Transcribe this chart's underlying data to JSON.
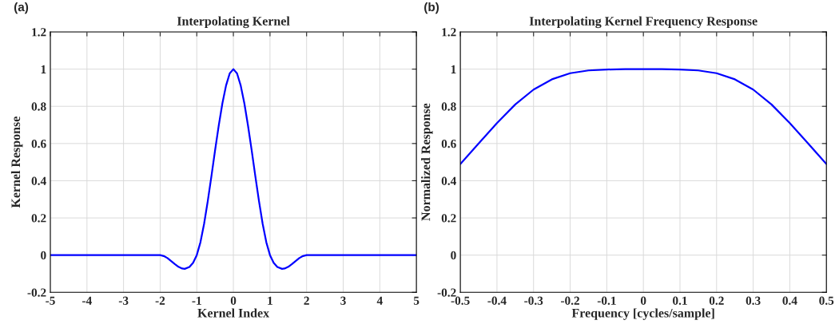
{
  "chart_data": [
    {
      "type": "line",
      "title": "Interpolating Kernel",
      "xlabel": "Kernel Index",
      "ylabel": "Kernel Response",
      "annotations": [
        "(a)"
      ],
      "series": [
        {
          "color": "#0000ff",
          "x": [
            -5,
            -4,
            -3,
            -2,
            -1.9,
            -1.8,
            -1.7,
            -1.6,
            -1.5,
            -1.4,
            -1.33,
            -1.2,
            -1.1,
            -1,
            -0.9,
            -0.8,
            -0.7,
            -0.6,
            -0.5,
            -0.4,
            -0.3,
            -0.2,
            -0.1,
            0,
            0.1,
            0.2,
            0.3,
            0.4,
            0.5,
            0.6,
            0.7,
            0.8,
            0.9,
            1,
            1.1,
            1.2,
            1.33,
            1.4,
            1.5,
            1.6,
            1.7,
            1.8,
            1.9,
            2,
            3,
            4,
            5
          ],
          "values": [
            0,
            0,
            0,
            0,
            -0.005,
            -0.016,
            -0.032,
            -0.048,
            -0.063,
            -0.072,
            -0.074,
            -0.064,
            -0.041,
            0,
            0.069,
            0.168,
            0.29,
            0.424,
            0.563,
            0.696,
            0.816,
            0.912,
            0.977,
            1,
            0.977,
            0.912,
            0.816,
            0.696,
            0.563,
            0.424,
            0.29,
            0.168,
            0.069,
            0,
            -0.041,
            -0.064,
            -0.074,
            -0.072,
            -0.063,
            -0.048,
            -0.032,
            -0.016,
            -0.005,
            0,
            0,
            0,
            0
          ]
        }
      ],
      "xlim": [
        -5,
        5
      ],
      "xticks": [
        -5,
        -4,
        -3,
        -2,
        -1,
        0,
        1,
        2,
        3,
        4,
        5
      ],
      "ylim": [
        -0.2,
        1.2
      ],
      "yticks": [
        -0.2,
        0,
        0.2,
        0.4,
        0.6,
        0.8,
        1,
        1.2
      ],
      "grid": true,
      "line_style": "solid"
    },
    {
      "type": "line",
      "title": "Interpolating Kernel Frequency Response",
      "xlabel": "Frequency [cycles/sample]",
      "ylabel": "Normalized Response",
      "annotations": [
        "(b)"
      ],
      "series": [
        {
          "color": "#0000ff",
          "x": [
            -0.5,
            -0.45,
            -0.4,
            -0.35,
            -0.3,
            -0.25,
            -0.2,
            -0.15,
            -0.1,
            -0.05,
            0,
            0.05,
            0.1,
            0.15,
            0.2,
            0.25,
            0.3,
            0.35,
            0.4,
            0.45,
            0.5
          ],
          "values": [
            0.49,
            0.6,
            0.71,
            0.81,
            0.89,
            0.945,
            0.978,
            0.993,
            0.998,
            1,
            1,
            1,
            0.998,
            0.993,
            0.978,
            0.945,
            0.89,
            0.81,
            0.71,
            0.6,
            0.49
          ]
        }
      ],
      "xlim": [
        -0.5,
        0.5
      ],
      "xticks": [
        -0.5,
        -0.4,
        -0.3,
        -0.2,
        -0.1,
        0,
        0.1,
        0.2,
        0.3,
        0.4,
        0.5
      ],
      "ylim": [
        -0.2,
        1.2
      ],
      "yticks": [
        -0.2,
        0,
        0.2,
        0.4,
        0.6,
        0.8,
        1,
        1.2
      ],
      "grid": true,
      "line_style": "solid"
    }
  ]
}
